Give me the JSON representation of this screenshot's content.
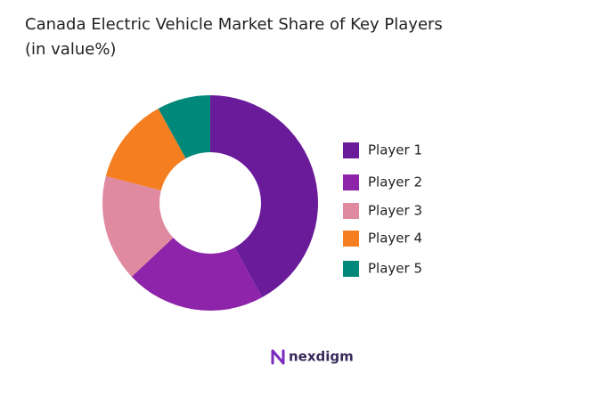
{
  "chart_data": {
    "type": "donut",
    "title": "Canada Electric Vehicle Market Share of Key Players",
    "subtitle": "(in value%)",
    "categories": [
      "Player 1",
      "Player 2",
      "Player 3",
      "Player 4",
      "Player 5"
    ],
    "values": [
      42,
      21,
      16,
      13,
      8
    ],
    "colors": [
      "#6a1b9a",
      "#8e24aa",
      "#e08aa0",
      "#f57f20",
      "#00897b"
    ],
    "legend": "right"
  },
  "footer": {
    "brand": "nexdigm"
  }
}
